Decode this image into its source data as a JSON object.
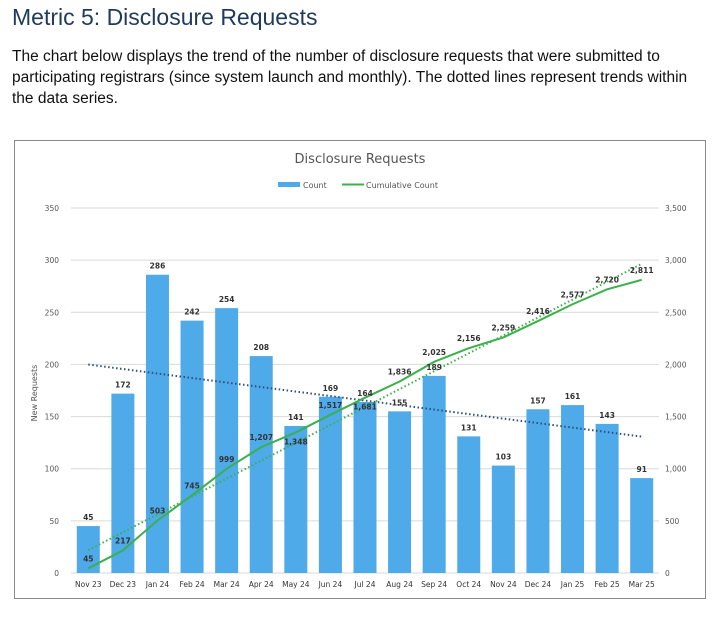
{
  "heading": "Metric 5: Disclosure Requests",
  "description": "The chart below displays the trend of the number of disclosure requests that were submitted to participating registrars (since system launch and monthly). The dotted lines represent trends within the data series.",
  "chart_data": {
    "type": "bar+line",
    "title": "Disclosure Requests",
    "ylabel": "New Requests",
    "ylim": [
      0,
      350
    ],
    "y2lim": [
      0,
      3500
    ],
    "yticks": [
      "0",
      "50",
      "100",
      "150",
      "200",
      "250",
      "300",
      "350"
    ],
    "y2ticks": [
      "0",
      "500",
      "1,000",
      "1,500",
      "2,000",
      "2,500",
      "3,000",
      "3,500"
    ],
    "grid": true,
    "legend": "top",
    "categories": [
      "Nov 23",
      "Dec 23",
      "Jan 24",
      "Feb 24",
      "Mar 24",
      "Apr 24",
      "May 24",
      "Jun 24",
      "Jul 24",
      "Aug 24",
      "Sep 24",
      "Oct 24",
      "Nov 24",
      "Dec 24",
      "Jan 25",
      "Feb 25",
      "Mar 25"
    ],
    "series": [
      {
        "name": "Count",
        "type": "bar",
        "axis": "left",
        "color": "#4eaae8",
        "values": [
          45,
          172,
          286,
          242,
          254,
          208,
          141,
          169,
          164,
          155,
          189,
          131,
          103,
          157,
          161,
          143,
          91
        ]
      },
      {
        "name": "Cumulative Count",
        "type": "line",
        "axis": "right",
        "color": "#3cb04a",
        "values": [
          45,
          217,
          503,
          745,
          999,
          1207,
          1348,
          1517,
          1681,
          1836,
          2025,
          2156,
          2259,
          2416,
          2577,
          2720,
          2811
        ]
      }
    ],
    "trendlines": [
      {
        "of": "Count",
        "style": "dotted",
        "color": "#2b4f7e"
      },
      {
        "of": "Cumulative Count",
        "style": "dotted",
        "color": "#3cb04a"
      }
    ]
  }
}
